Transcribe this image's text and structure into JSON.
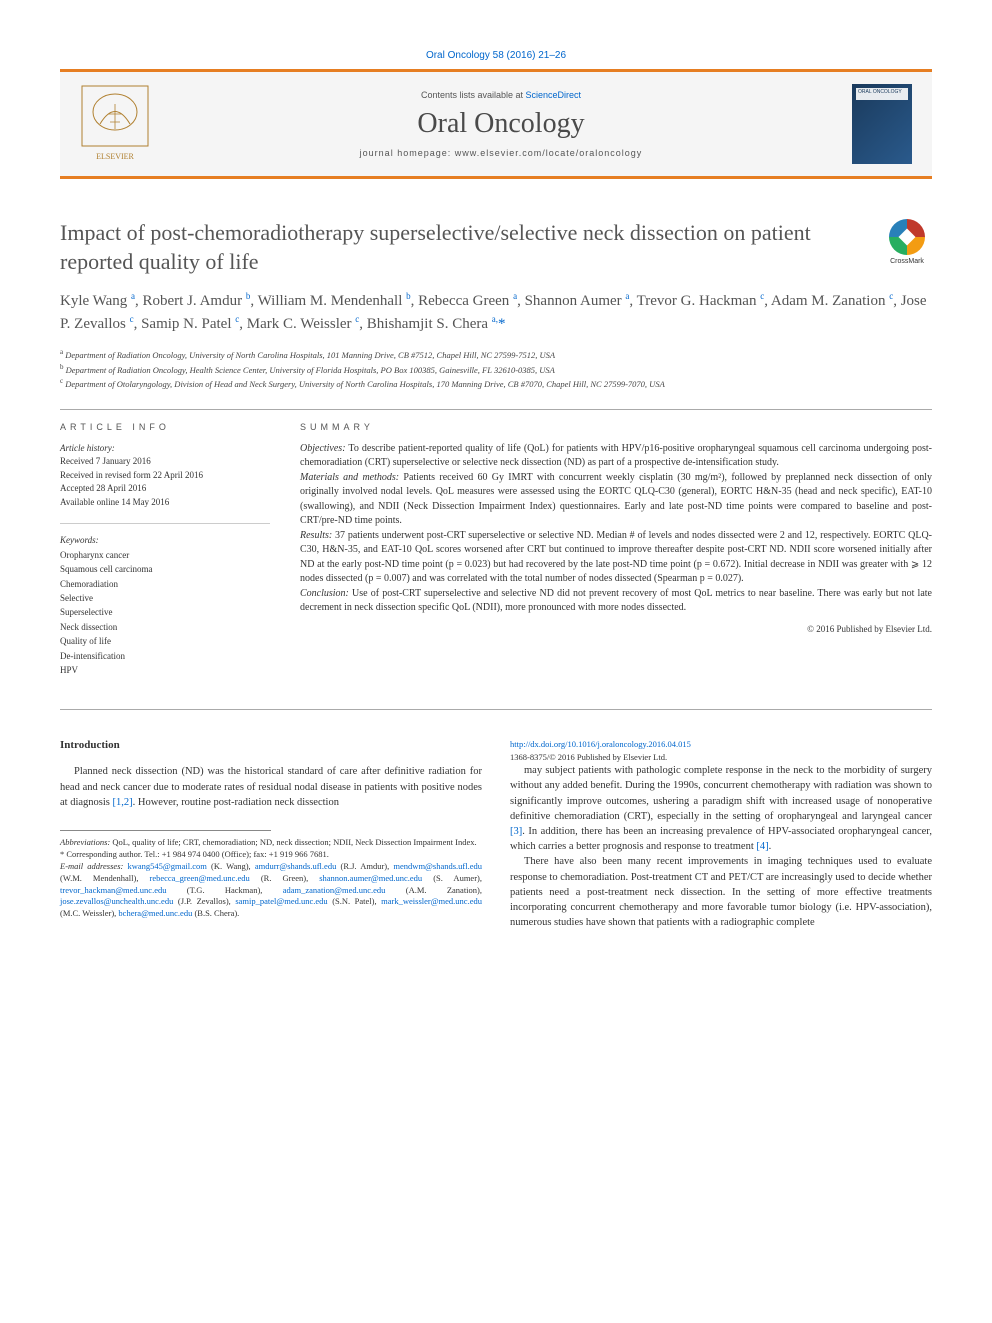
{
  "citation": "Oral Oncology 58 (2016) 21–26",
  "header": {
    "contents_prefix": "Contents lists available at ",
    "contents_link": "ScienceDirect",
    "journal": "Oral Oncology",
    "homepage_prefix": "journal homepage: ",
    "homepage": "www.elsevier.com/locate/oraloncology",
    "cover_label": "ORAL ONCOLOGY"
  },
  "crossmark": "CrossMark",
  "title": "Impact of post-chemoradiotherapy superselective/selective neck dissection on patient reported quality of life",
  "authors_html": "Kyle Wang <sup>a</sup>, Robert J. Amdur <sup>b</sup>, William M. Mendenhall <sup>b</sup>, Rebecca Green <sup>a</sup>, Shannon Aumer <sup>a</sup>, Trevor G. Hackman <sup>c</sup>, Adam M. Zanation <sup>c</sup>, Jose P. Zevallos <sup>c</sup>, Samip N. Patel <sup>c</sup>, Mark C. Weissler <sup>c</sup>, Bhishamjit S. Chera <sup>a,</sup><span class='corr-star'>*</span>",
  "affiliations": [
    {
      "sup": "a",
      "text": "Department of Radiation Oncology, University of North Carolina Hospitals, 101 Manning Drive, CB #7512, Chapel Hill, NC 27599-7512, USA"
    },
    {
      "sup": "b",
      "text": "Department of Radiation Oncology, Health Science Center, University of Florida Hospitals, PO Box 100385, Gainesville, FL 32610-0385, USA"
    },
    {
      "sup": "c",
      "text": "Department of Otolaryngology, Division of Head and Neck Surgery, University of North Carolina Hospitals, 170 Manning Drive, CB #7070, Chapel Hill, NC 27599-7070, USA"
    }
  ],
  "article_info_label": "ARTICLE INFO",
  "summary_label": "SUMMARY",
  "history_label": "Article history:",
  "history": [
    "Received 7 January 2016",
    "Received in revised form 22 April 2016",
    "Accepted 28 April 2016",
    "Available online 14 May 2016"
  ],
  "keywords_label": "Keywords:",
  "keywords": [
    "Oropharynx cancer",
    "Squamous cell carcinoma",
    "Chemoradiation",
    "Selective",
    "Superselective",
    "Neck dissection",
    "Quality of life",
    "De-intensification",
    "HPV"
  ],
  "summary": {
    "objectives_lead": "Objectives:",
    "objectives": " To describe patient-reported quality of life (QoL) for patients with HPV/p16-positive oropharyngeal squamous cell carcinoma undergoing post-chemoradiation (CRT) superselective or selective neck dissection (ND) as part of a prospective de-intensification study.",
    "materials_lead": "Materials and methods:",
    "materials": " Patients received 60 Gy IMRT with concurrent weekly cisplatin (30 mg/m²), followed by preplanned neck dissection of only originally involved nodal levels. QoL measures were assessed using the EORTC QLQ-C30 (general), EORTC H&N-35 (head and neck specific), EAT-10 (swallowing), and NDII (Neck Dissection Impairment Index) questionnaires. Early and late post-ND time points were compared to baseline and post-CRT/pre-ND time points.",
    "results_lead": "Results:",
    "results": " 37 patients underwent post-CRT superselective or selective ND. Median # of levels and nodes dissected were 2 and 12, respectively. EORTC QLQ-C30, H&N-35, and EAT-10 QoL scores worsened after CRT but continued to improve thereafter despite post-CRT ND. NDII score worsened initially after ND at the early post-ND time point (p = 0.023) but had recovered by the late post-ND time point (p = 0.672). Initial decrease in NDII was greater with ⩾ 12 nodes dissected (p = 0.007) and was correlated with the total number of nodes dissected (Spearman p = 0.027).",
    "conclusion_lead": "Conclusion:",
    "conclusion": " Use of post-CRT superselective and selective ND did not prevent recovery of most QoL metrics to near baseline. There was early but not late decrement in neck dissection specific QoL (NDII), more pronounced with more nodes dissected.",
    "copyright": "© 2016 Published by Elsevier Ltd."
  },
  "intro_heading": "Introduction",
  "intro_p1": "Planned neck dissection (ND) was the historical standard of care after definitive radiation for head and neck cancer due to moderate rates of residual nodal disease in patients with positive nodes at diagnosis [1,2]. However, routine post-radiation neck dissection",
  "intro_p2": "may subject patients with pathologic complete response in the neck to the morbidity of surgery without any added benefit. During the 1990s, concurrent chemotherapy with radiation was shown to significantly improve outcomes, ushering a paradigm shift with increased usage of nonoperative definitive chemoradiation (CRT), especially in the setting of oropharyngeal and laryngeal cancer [3]. In addition, there has been an increasing prevalence of HPV-associated oropharyngeal cancer, which carries a better prognosis and response to treatment [4].",
  "intro_p3": "There have also been many recent improvements in imaging techniques used to evaluate response to chemoradiation. Post-treatment CT and PET/CT are increasingly used to decide whether patients need a post-treatment neck dissection. In the setting of more effective treatments incorporating concurrent chemotherapy and more favorable tumor biology (i.e. HPV-association), numerous studies have shown that patients with a radiographic complete",
  "footnotes": {
    "abbrev_label": "Abbreviations:",
    "abbrev": " QoL, quality of life; CRT, chemoradiation; ND, neck dissection; NDII, Neck Dissection Impairment Index.",
    "corr_label": "* Corresponding author.",
    "corr": " Tel.: +1 984 974 0400 (Office); fax: +1 919 966 7681.",
    "email_label": "E-mail addresses:",
    "emails_html": " <span class='email'>kwang545@gmail.com</span> (K. Wang), <span class='email'>amdurr@shands.ufl.edu</span> (R.J. Amdur), <span class='email'>mendwm@shands.ufl.edu</span> (W.M. Mendenhall), <span class='email'>rebecca_green@med.unc.edu</span> (R. Green), <span class='email'>shannon.aumer@med.unc.edu</span> (S. Aumer), <span class='email'>trevor_hackman@med.unc.edu</span> (T.G. Hackman), <span class='email'>adam_zanation@med.unc.edu</span> (A.M. Zanation), <span class='email'>jose.zevallos@unchealth.unc.edu</span> (J.P. Zevallos), <span class='email'>samip_patel@med.unc.edu</span> (S.N. Patel), <span class='email'>mark_weissler@med.unc.edu</span> (M.C. Weissler), <span class='email'>bchera@med.unc.edu</span> (B.S. Chera)."
  },
  "doi": "http://dx.doi.org/10.1016/j.oraloncology.2016.04.015",
  "issn_line": "1368-8375/© 2016 Published by Elsevier Ltd.",
  "colors": {
    "accent": "#e67e22",
    "link": "#0066cc",
    "text": "#333333",
    "muted": "#555555",
    "bg_header": "#f5f5f5"
  }
}
